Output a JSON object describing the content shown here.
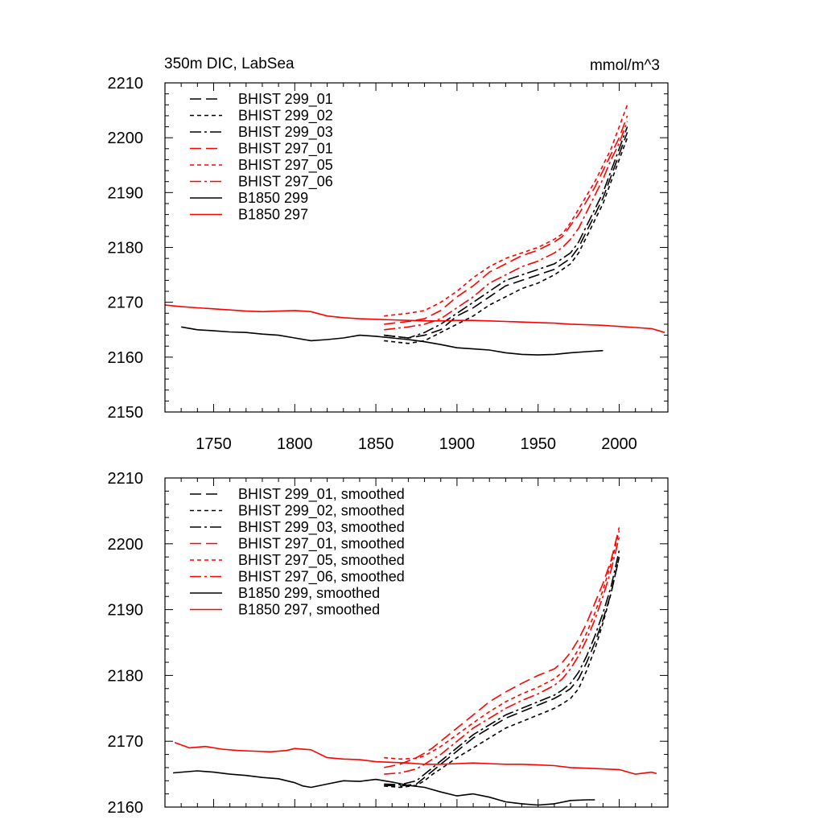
{
  "figure": {
    "title_left": "350m DIC, LabSea",
    "title_right": "mmol/m^3"
  },
  "colors": {
    "black": "#000000",
    "red": "#ff0000"
  },
  "chart_data": [
    {
      "type": "line",
      "title": "350m DIC, LabSea",
      "units": "mmol/m^3",
      "xlabel": "",
      "ylabel": "",
      "xlim": [
        1720,
        2030
      ],
      "ylim": [
        2150,
        2210
      ],
      "xticks": [
        1750,
        1800,
        1850,
        1900,
        1950,
        2000
      ],
      "yticks": [
        2150,
        2160,
        2170,
        2180,
        2190,
        2200,
        2210
      ],
      "legend_position": "top-left",
      "series": [
        {
          "name": "BHIST 299_01",
          "color": "#000000",
          "dash": "long-dash",
          "x": [
            1855,
            1870,
            1880,
            1890,
            1900,
            1910,
            1920,
            1930,
            1940,
            1950,
            1960,
            1965,
            1970,
            1975,
            1980,
            1985,
            1990,
            1995,
            2000,
            2005
          ],
          "y": [
            2164,
            2163.5,
            2164,
            2165,
            2167.5,
            2169,
            2171,
            2173,
            2174,
            2175,
            2176,
            2177,
            2178,
            2180,
            2183,
            2186,
            2189,
            2193,
            2197,
            2201
          ]
        },
        {
          "name": "BHIST 299_02",
          "color": "#000000",
          "dash": "short-dash",
          "x": [
            1855,
            1870,
            1880,
            1890,
            1900,
            1910,
            1920,
            1930,
            1940,
            1950,
            1960,
            1965,
            1970,
            1975,
            1980,
            1985,
            1990,
            1995,
            2000,
            2005
          ],
          "y": [
            2163,
            2162.5,
            2163,
            2164.5,
            2166,
            2167.5,
            2169.5,
            2171,
            2172.5,
            2173.5,
            2175,
            2176,
            2177,
            2179,
            2182,
            2185,
            2188,
            2192,
            2196,
            2200
          ]
        },
        {
          "name": "BHIST 299_03",
          "color": "#000000",
          "dash": "dash-dot",
          "x": [
            1855,
            1870,
            1880,
            1890,
            1900,
            1910,
            1920,
            1930,
            1940,
            1950,
            1960,
            1965,
            1970,
            1975,
            1980,
            1985,
            1990,
            1995,
            2000,
            2005
          ],
          "y": [
            2164,
            2163.5,
            2164.5,
            2166,
            2168,
            2170,
            2172,
            2174,
            2175,
            2176,
            2177,
            2178,
            2179,
            2181,
            2184,
            2187,
            2190,
            2194,
            2198,
            2202
          ]
        },
        {
          "name": "BHIST 297_01",
          "color": "#ff0000",
          "dash": "long-dash",
          "x": [
            1855,
            1870,
            1880,
            1890,
            1900,
            1910,
            1920,
            1930,
            1940,
            1950,
            1960,
            1965,
            1970,
            1975,
            1980,
            1985,
            1990,
            1995,
            2000,
            2005
          ],
          "y": [
            2166,
            2166.5,
            2167,
            2168.5,
            2171,
            2173,
            2175.5,
            2177,
            2178.5,
            2179.5,
            2181,
            2182,
            2184,
            2186,
            2188.5,
            2191,
            2194,
            2197,
            2200,
            2204
          ]
        },
        {
          "name": "BHIST 297_05",
          "color": "#ff0000",
          "dash": "short-dash",
          "x": [
            1855,
            1870,
            1880,
            1890,
            1900,
            1910,
            1920,
            1930,
            1940,
            1950,
            1960,
            1965,
            1970,
            1975,
            1980,
            1985,
            1990,
            1995,
            2000,
            2005
          ],
          "y": [
            2167.5,
            2168,
            2168.5,
            2170,
            2172,
            2174.5,
            2176.5,
            2178,
            2179,
            2180,
            2181.5,
            2182.5,
            2184.5,
            2187,
            2189.5,
            2192,
            2195,
            2198,
            2202,
            2206
          ]
        },
        {
          "name": "BHIST 297_06",
          "color": "#ff0000",
          "dash": "dash-dot",
          "x": [
            1855,
            1870,
            1880,
            1890,
            1900,
            1910,
            1920,
            1930,
            1940,
            1950,
            1960,
            1965,
            1970,
            1975,
            1980,
            1985,
            1990,
            1995,
            2000,
            2005
          ],
          "y": [
            2165,
            2165.5,
            2166,
            2167,
            2169,
            2171,
            2173.5,
            2175,
            2176.5,
            2177.5,
            2179,
            2180,
            2181.5,
            2183.5,
            2186.5,
            2189.5,
            2192.5,
            2196,
            2199,
            2203
          ]
        },
        {
          "name": "B1850 299",
          "color": "#000000",
          "dash": "solid",
          "x": [
            1730,
            1740,
            1750,
            1760,
            1770,
            1780,
            1790,
            1800,
            1810,
            1820,
            1830,
            1840,
            1850,
            1860,
            1870,
            1880,
            1890,
            1900,
            1910,
            1920,
            1930,
            1940,
            1950,
            1960,
            1970,
            1980,
            1990
          ],
          "y": [
            2165.5,
            2165,
            2164.8,
            2164.6,
            2164.5,
            2164.2,
            2164,
            2163.5,
            2163,
            2163.2,
            2163.5,
            2164,
            2163.8,
            2163.5,
            2163.2,
            2162.8,
            2162.3,
            2161.7,
            2161.5,
            2161.3,
            2160.8,
            2160.5,
            2160.4,
            2160.5,
            2160.8,
            2161,
            2161.2
          ]
        },
        {
          "name": "B1850 297",
          "color": "#ff0000",
          "dash": "solid",
          "x": [
            1720,
            1730,
            1740,
            1750,
            1760,
            1770,
            1780,
            1790,
            1800,
            1810,
            1820,
            1830,
            1840,
            1850,
            1860,
            1870,
            1880,
            1890,
            1900,
            1910,
            1920,
            1930,
            1940,
            1950,
            1960,
            1970,
            1980,
            1990,
            2000,
            2010,
            2020,
            2028
          ],
          "y": [
            2169.5,
            2169.2,
            2169,
            2168.8,
            2168.6,
            2168.4,
            2168.3,
            2168.4,
            2168.5,
            2168.3,
            2167.5,
            2167.2,
            2167,
            2166.9,
            2166.8,
            2166.7,
            2166.6,
            2166.6,
            2166.7,
            2166.7,
            2166.6,
            2166.5,
            2166.4,
            2166.3,
            2166.2,
            2166,
            2165.9,
            2165.8,
            2165.6,
            2165.4,
            2165.2,
            2164.5
          ]
        }
      ]
    },
    {
      "type": "line",
      "title": "",
      "xlabel": "",
      "ylabel": "",
      "xlim": [
        1720,
        2030
      ],
      "ylim": [
        2160,
        2210
      ],
      "xticks": [
        1750,
        1800,
        1850,
        1900,
        1950,
        2000
      ],
      "yticks": [
        2160,
        2170,
        2180,
        2190,
        2200,
        2210
      ],
      "legend_position": "top-left",
      "series": [
        {
          "name": "BHIST 299_01, smoothed",
          "color": "#000000",
          "dash": "long-dash",
          "x": [
            1855,
            1865,
            1875,
            1880,
            1885,
            1890,
            1900,
            1910,
            1920,
            1930,
            1940,
            1950,
            1960,
            1965,
            1970,
            1975,
            1980,
            1985,
            1990,
            1995,
            2000
          ],
          "y": [
            2163.3,
            2163.2,
            2163.5,
            2164.5,
            2165.5,
            2166.5,
            2168.5,
            2170.5,
            2172,
            2173.5,
            2174.5,
            2175.5,
            2176.5,
            2177.2,
            2178,
            2179.5,
            2182,
            2185,
            2188.5,
            2192.5,
            2198
          ]
        },
        {
          "name": "BHIST 299_02, smoothed",
          "color": "#000000",
          "dash": "short-dash",
          "x": [
            1855,
            1865,
            1875,
            1880,
            1885,
            1890,
            1900,
            1910,
            1920,
            1930,
            1940,
            1950,
            1960,
            1965,
            1970,
            1975,
            1980,
            1985,
            1990,
            1995,
            2000
          ],
          "y": [
            2163.2,
            2163,
            2163.3,
            2164,
            2165,
            2165.8,
            2167.5,
            2169,
            2170.5,
            2172,
            2173,
            2174,
            2175,
            2175.7,
            2176.5,
            2178,
            2180.8,
            2184,
            2188,
            2192.5,
            2198
          ]
        },
        {
          "name": "BHIST 299_03, smoothed",
          "color": "#000000",
          "dash": "dash-dot",
          "x": [
            1855,
            1865,
            1875,
            1880,
            1885,
            1890,
            1900,
            1910,
            1920,
            1930,
            1940,
            1950,
            1960,
            1965,
            1970,
            1975,
            1980,
            1985,
            1990,
            1995,
            2000
          ],
          "y": [
            2163.5,
            2163.4,
            2164,
            2165,
            2166,
            2167,
            2169,
            2171,
            2172.5,
            2174,
            2175,
            2176,
            2177,
            2177.8,
            2178.8,
            2180.5,
            2183,
            2186,
            2189.5,
            2193.5,
            2199
          ]
        },
        {
          "name": "BHIST 297_01, smoothed",
          "color": "#ff0000",
          "dash": "long-dash",
          "x": [
            1855,
            1865,
            1875,
            1880,
            1885,
            1890,
            1900,
            1910,
            1920,
            1930,
            1940,
            1950,
            1960,
            1965,
            1970,
            1975,
            1980,
            1985,
            1990,
            1995,
            2000
          ],
          "y": [
            2166,
            2166.5,
            2167.5,
            2168.2,
            2169,
            2170,
            2172,
            2174,
            2176,
            2177.5,
            2178.8,
            2180,
            2181,
            2182,
            2183.5,
            2185.5,
            2188,
            2191,
            2194,
            2197.5,
            2202.5
          ]
        },
        {
          "name": "BHIST 297_05, smoothed",
          "color": "#ff0000",
          "dash": "short-dash",
          "x": [
            1855,
            1865,
            1875,
            1880,
            1885,
            1890,
            1900,
            1910,
            1920,
            1930,
            1940,
            1950,
            1960,
            1965,
            1970,
            1975,
            1980,
            1985,
            1990,
            1995,
            2000
          ],
          "y": [
            2167.5,
            2167.3,
            2167.4,
            2167.8,
            2168.5,
            2169.2,
            2171,
            2172.8,
            2174.5,
            2176,
            2177.2,
            2178.2,
            2179.5,
            2180.5,
            2182,
            2184,
            2186.5,
            2189.5,
            2193,
            2197,
            2202
          ]
        },
        {
          "name": "BHIST 297_06, smoothed",
          "color": "#ff0000",
          "dash": "dash-dot",
          "x": [
            1855,
            1865,
            1875,
            1880,
            1885,
            1890,
            1900,
            1910,
            1920,
            1930,
            1940,
            1950,
            1960,
            1965,
            1970,
            1975,
            1980,
            1985,
            1990,
            1995,
            2000
          ],
          "y": [
            2165,
            2165.2,
            2165.8,
            2166.5,
            2167.3,
            2168,
            2170,
            2172,
            2173.5,
            2175,
            2176.2,
            2177.2,
            2178.5,
            2179.5,
            2181,
            2183,
            2185.5,
            2188.5,
            2192,
            2196,
            2201
          ]
        },
        {
          "name": "B1850 299, smoothed",
          "color": "#000000",
          "dash": "solid",
          "x": [
            1725,
            1740,
            1750,
            1760,
            1770,
            1780,
            1790,
            1800,
            1805,
            1810,
            1820,
            1830,
            1840,
            1850,
            1860,
            1870,
            1880,
            1890,
            1900,
            1910,
            1920,
            1930,
            1940,
            1950,
            1960,
            1970,
            1980,
            1985
          ],
          "y": [
            2165.2,
            2165.5,
            2165.3,
            2165,
            2164.8,
            2164.5,
            2164.3,
            2163.7,
            2163.2,
            2163,
            2163.5,
            2164,
            2163.9,
            2164.2,
            2163.8,
            2163.3,
            2163,
            2162.3,
            2161.7,
            2162,
            2161.5,
            2160.8,
            2160.5,
            2160.3,
            2160.5,
            2161,
            2161.1,
            2161.1
          ]
        },
        {
          "name": "B1850 297, smoothed",
          "color": "#ff0000",
          "dash": "solid",
          "x": [
            1726,
            1735,
            1745,
            1755,
            1765,
            1775,
            1785,
            1795,
            1800,
            1810,
            1820,
            1830,
            1840,
            1850,
            1860,
            1870,
            1880,
            1890,
            1900,
            1910,
            1920,
            1930,
            1940,
            1950,
            1960,
            1970,
            1980,
            1990,
            2000,
            2010,
            2020,
            2023
          ],
          "y": [
            2169.8,
            2169,
            2169.2,
            2168.8,
            2168.6,
            2168.5,
            2168.4,
            2168.6,
            2168.9,
            2168.7,
            2167.5,
            2167.3,
            2167.2,
            2166.9,
            2166.8,
            2166.7,
            2166.5,
            2166.5,
            2166.6,
            2166.7,
            2166.6,
            2166.5,
            2166.5,
            2166.4,
            2166.3,
            2166,
            2165.9,
            2165.8,
            2165.7,
            2165,
            2165.3,
            2165.1
          ]
        }
      ]
    }
  ]
}
